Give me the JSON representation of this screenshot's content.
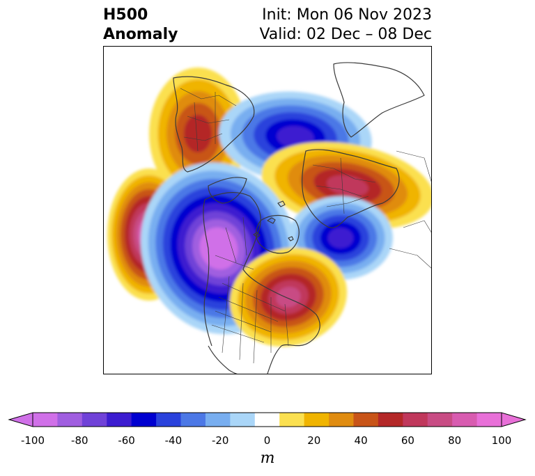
{
  "title": {
    "left_line1": "H500",
    "left_line2": "Anomaly",
    "right_line1": "Init: Mon 06 Nov 2023",
    "right_line2": "Valid: 02 Dec – 08 Dec"
  },
  "map": {
    "projection": "north-polar-stereographic",
    "field": "500 hPa geopotential height anomaly",
    "coastline_color": "#3a3a3a",
    "anomaly_centers": [
      {
        "sign": "positive",
        "region": "Siberia / northern Asia",
        "peak_m": 50
      },
      {
        "sign": "negative",
        "region": "Arctic Ocean north of Scandinavia",
        "peak_m": -60
      },
      {
        "sign": "positive",
        "region": "Scandinavia / northern Europe",
        "peak_m": 65
      },
      {
        "sign": "positive",
        "region": "North Pacific",
        "peak_m": 90
      },
      {
        "sign": "negative",
        "region": "Alaska / Bering Sea / northwest Canada",
        "peak_m": -100
      },
      {
        "sign": "negative",
        "region": "North Atlantic south of Greenland",
        "peak_m": -60
      },
      {
        "sign": "positive",
        "region": "eastern Canada / Great Lakes",
        "peak_m": 75
      }
    ]
  },
  "colorbar": {
    "unit_label": "m",
    "ticks": [
      "-100",
      "-80",
      "-60",
      "-40",
      "-20",
      "0",
      "20",
      "40",
      "60",
      "80",
      "100"
    ],
    "colors": [
      "#d070e8",
      "#a05ee0",
      "#7042d8",
      "#3c1cd0",
      "#0000d0",
      "#2a42dc",
      "#4c78e6",
      "#78aef0",
      "#aad6f8",
      "#ffffff",
      "#fbe050",
      "#f0b400",
      "#e08c10",
      "#c85418",
      "#b42828",
      "#c0385c",
      "#c84c84",
      "#d85cb0",
      "#e870d8"
    ],
    "extend_low_color": "#d070e8",
    "extend_high_color": "#e870d8"
  }
}
